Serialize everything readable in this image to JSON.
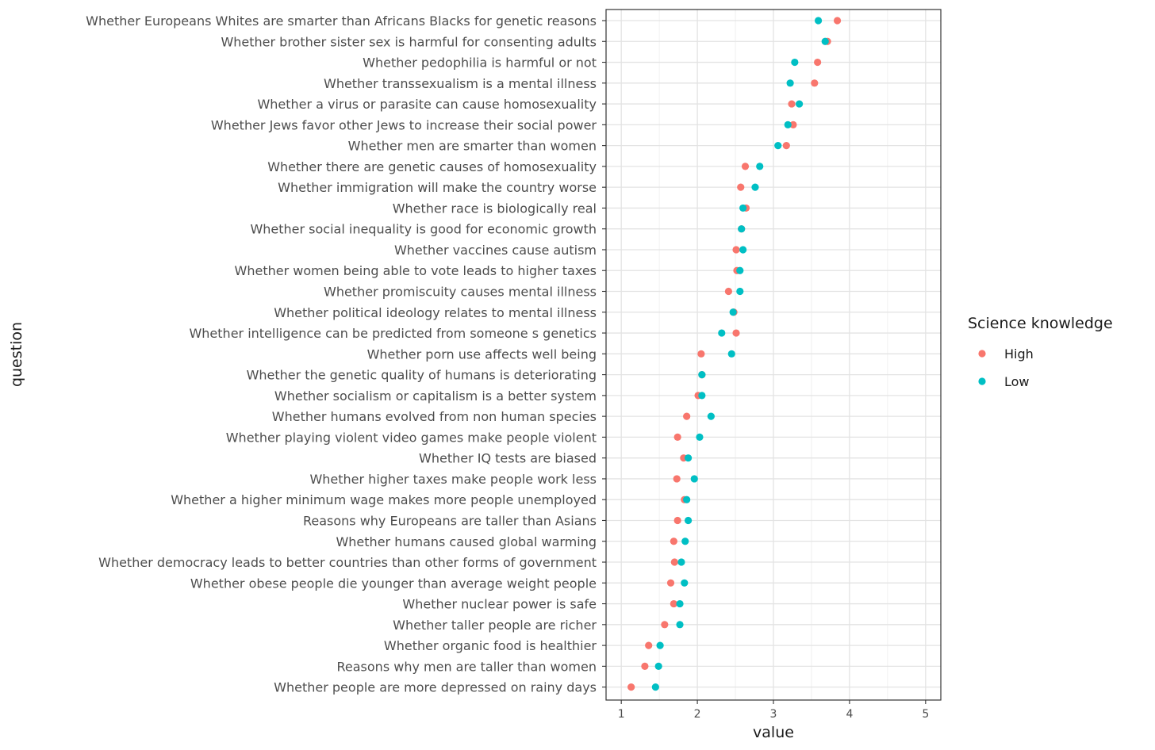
{
  "chart_data": {
    "type": "scatter",
    "xlabel": "value",
    "ylabel": "question",
    "xlim": [
      0.8,
      5.2
    ],
    "xticks": [
      1,
      2,
      3,
      4,
      5
    ],
    "grid": true,
    "legend_title": "Science knowledge",
    "legend_position": "right",
    "categories": [
      "Whether Europeans Whites are smarter than Africans Blacks for genetic reasons",
      "Whether brother sister sex is harmful for consenting adults",
      "Whether pedophilia is harmful or not",
      "Whether transsexualism is a mental illness",
      "Whether a virus or parasite can cause homosexuality",
      "Whether Jews favor other Jews to increase their social power",
      "Whether men are smarter than women",
      "Whether there are genetic causes of homosexuality",
      "Whether immigration will make the country worse",
      "Whether race is biologically real",
      "Whether social inequality is good for economic growth",
      "Whether vaccines cause autism",
      "Whether women being able to vote leads to higher taxes",
      "Whether promiscuity causes mental illness",
      "Whether political ideology relates to mental illness",
      "Whether intelligence can be predicted from someone s genetics",
      "Whether porn use affects well being",
      "Whether the genetic quality of humans is deteriorating",
      "Whether socialism or capitalism is a better system",
      "Whether humans evolved from non human species",
      "Whether playing violent video games make people violent",
      "Whether IQ tests are biased",
      "Whether higher taxes make people work less",
      "Whether a higher minimum wage makes more people unemployed",
      "Reasons why Europeans are taller than Asians",
      "Whether humans caused global warming",
      "Whether democracy leads to better countries than other forms of government",
      "Whether obese people die younger than average weight people",
      "Whether nuclear power is safe",
      "Whether taller people are richer",
      "Whether organic food is healthier",
      "Reasons why men are taller than women",
      "Whether people are more depressed on rainy days"
    ],
    "series": [
      {
        "name": "High",
        "color": "#F8766D",
        "values": [
          3.84,
          3.71,
          3.58,
          3.54,
          3.24,
          3.26,
          3.17,
          2.63,
          2.57,
          2.64,
          2.58,
          2.51,
          2.52,
          2.41,
          2.48,
          2.51,
          2.05,
          2.06,
          2.01,
          1.86,
          1.74,
          1.82,
          1.73,
          1.83,
          1.74,
          1.69,
          1.7,
          1.65,
          1.69,
          1.57,
          1.36,
          1.31,
          1.13
        ]
      },
      {
        "name": "Low",
        "color": "#00BFC4",
        "values": [
          3.59,
          3.68,
          3.28,
          3.22,
          3.34,
          3.19,
          3.06,
          2.82,
          2.76,
          2.6,
          2.58,
          2.6,
          2.56,
          2.56,
          2.47,
          2.32,
          2.45,
          2.06,
          2.06,
          2.18,
          2.03,
          1.88,
          1.96,
          1.86,
          1.88,
          1.84,
          1.79,
          1.83,
          1.77,
          1.77,
          1.51,
          1.49,
          1.45
        ]
      }
    ]
  }
}
